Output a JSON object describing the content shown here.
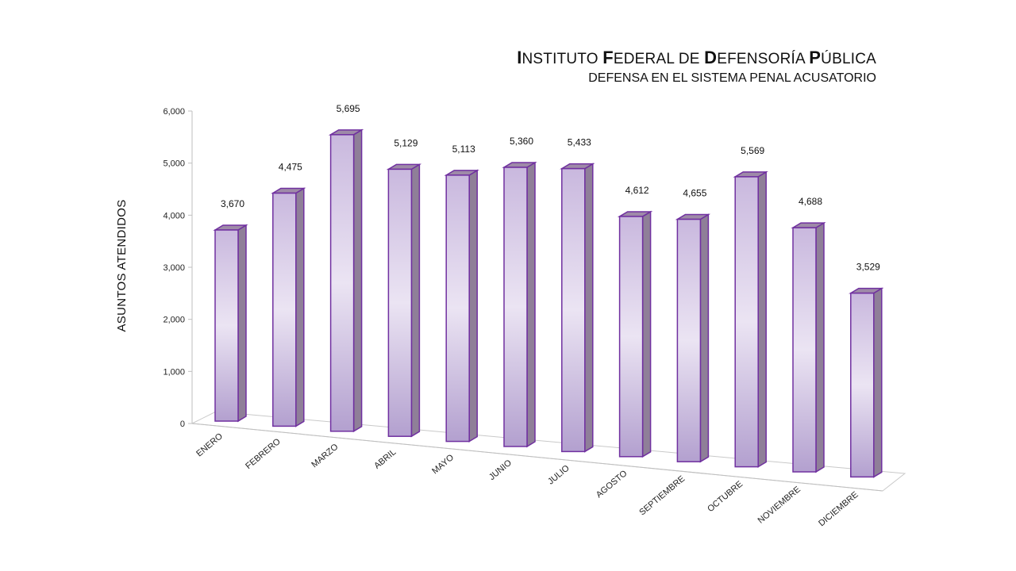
{
  "title": {
    "line1_parts": [
      {
        "cap": "I",
        "rest": "NSTITUTO "
      },
      {
        "cap": "F",
        "rest": "EDERAL DE "
      },
      {
        "cap": "D",
        "rest": "EFENSORÍA "
      },
      {
        "cap": "P",
        "rest": "ÚBLICA"
      }
    ],
    "line2": "DEFENSA EN EL SISTEMA PENAL ACUSATORIO"
  },
  "chart_data": {
    "type": "bar",
    "title": "INSTITUTO FEDERAL DE DEFENSORÍA PÚBLICA",
    "subtitle": "DEFENSA EN EL SISTEMA PENAL ACUSATORIO",
    "ylabel": "ASUNTOS ATENDIDOS",
    "xlabel": "",
    "ylim": [
      0,
      6000
    ],
    "yticks": [
      "0",
      "1,000",
      "2,000",
      "3,000",
      "4,000",
      "5,000",
      "6,000"
    ],
    "categories": [
      "ENERO",
      "FEBRERO",
      "MARZO",
      "ABRIL",
      "MAYO",
      "JUNIO",
      "JULIO",
      "AGOSTO",
      "SEPTIEMBRE",
      "OCTUBRE",
      "NOVIEMBRE",
      "DICIEMBRE"
    ],
    "values": [
      3670,
      4475,
      5695,
      5129,
      5113,
      5360,
      5433,
      4612,
      4655,
      5569,
      4688,
      3529
    ],
    "data_labels": [
      "3,670",
      "4,475",
      "5,695",
      "5,129",
      "5,113",
      "5,360",
      "5,433",
      "4,612",
      "4,655",
      "5,569",
      "4,688",
      "3,529"
    ],
    "grid": false,
    "legend": "none",
    "style": "3d-column",
    "colors": {
      "bar_light": "#e9e1f2",
      "bar_mid": "#c9b8de",
      "bar_dark": "#b3a0cf",
      "outline": "#7030a0",
      "top": "#9e8aa8",
      "side": "#8f7f98"
    }
  }
}
